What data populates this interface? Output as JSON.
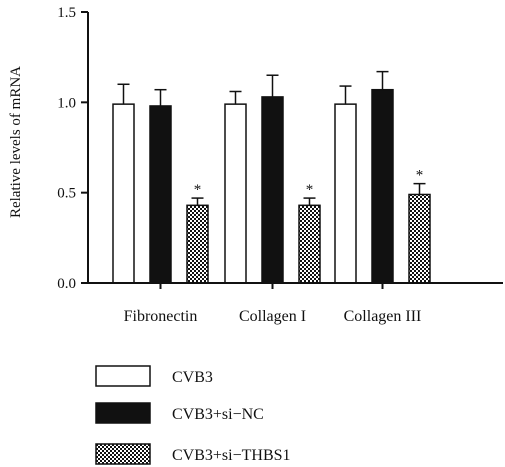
{
  "chart_data": {
    "type": "bar",
    "title": "",
    "xlabel": "",
    "ylabel": "Relative levels of mRNA",
    "ylim": [
      0,
      1.5
    ],
    "yticks": [
      "0.0",
      "0.5",
      "1.0",
      "1.5"
    ],
    "ytick_values": [
      0,
      0.5,
      1.0,
      1.5
    ],
    "categories": [
      "Fibronectin",
      "Collagen I",
      "Collagen III"
    ],
    "series": [
      {
        "name": "CVB3",
        "values": [
          0.99,
          0.99,
          0.99
        ],
        "errors": [
          0.11,
          0.07,
          0.1
        ],
        "fill": "#ffffff",
        "pattern": "none"
      },
      {
        "name": "CVB3+si−NC",
        "values": [
          0.98,
          1.03,
          1.07
        ],
        "errors": [
          0.09,
          0.12,
          0.1
        ],
        "fill": "#111111",
        "pattern": "none"
      },
      {
        "name": "CVB3+si−THBS1",
        "values": [
          0.43,
          0.43,
          0.49
        ],
        "errors": [
          0.04,
          0.04,
          0.06
        ],
        "fill": "#ffffff",
        "pattern": "checker"
      }
    ],
    "significance_marker": "*",
    "legend_position": "bottom-left",
    "grid": false
  }
}
